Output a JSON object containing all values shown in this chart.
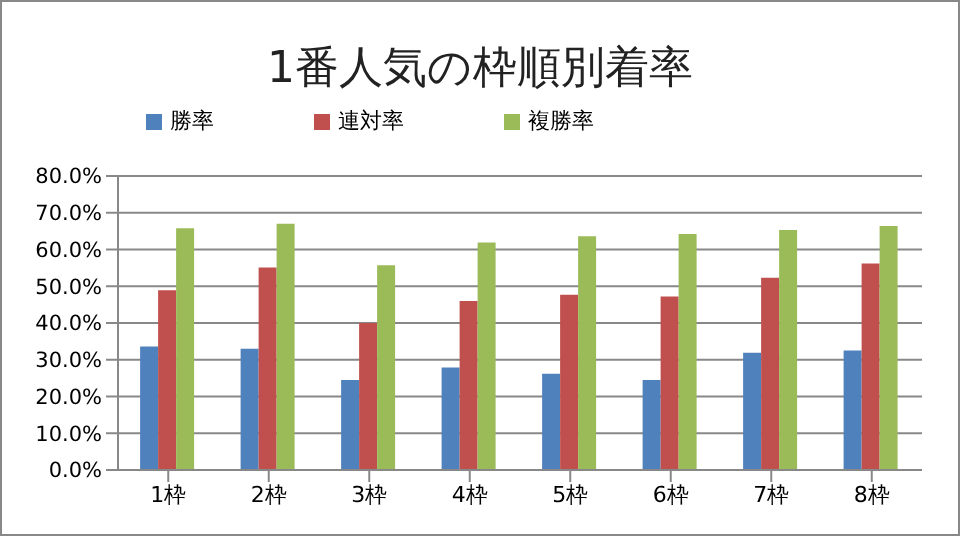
{
  "chart_data": {
    "type": "bar",
    "title": "1番人気の枠順別着率",
    "categories": [
      "1枠",
      "2枠",
      "3枠",
      "4枠",
      "5枠",
      "6枠",
      "7枠",
      "8枠"
    ],
    "series": [
      {
        "name": "勝率",
        "color": "#4f81bd",
        "values": [
          33.6,
          33.0,
          24.5,
          27.9,
          26.2,
          24.5,
          31.9,
          32.5
        ]
      },
      {
        "name": "連対率",
        "color": "#c0504d",
        "values": [
          48.9,
          55.1,
          40.0,
          46.0,
          47.7,
          47.2,
          52.3,
          56.2
        ]
      },
      {
        "name": "複勝率",
        "color": "#9bbb59",
        "values": [
          65.8,
          67.0,
          55.7,
          61.9,
          63.6,
          64.2,
          65.3,
          66.4
        ]
      }
    ],
    "ylim": [
      0,
      80
    ],
    "yticks": [
      {
        "value": 0,
        "label": "0.0%"
      },
      {
        "value": 10,
        "label": "10.0%"
      },
      {
        "value": 20,
        "label": "20.0%"
      },
      {
        "value": 30,
        "label": "30.0%"
      },
      {
        "value": 40,
        "label": "40.0%"
      },
      {
        "value": 50,
        "label": "50.0%"
      },
      {
        "value": 60,
        "label": "60.0%"
      },
      {
        "value": 70,
        "label": "70.0%"
      },
      {
        "value": 80,
        "label": "80.0%"
      }
    ],
    "grid": "y",
    "legend": "top left"
  }
}
